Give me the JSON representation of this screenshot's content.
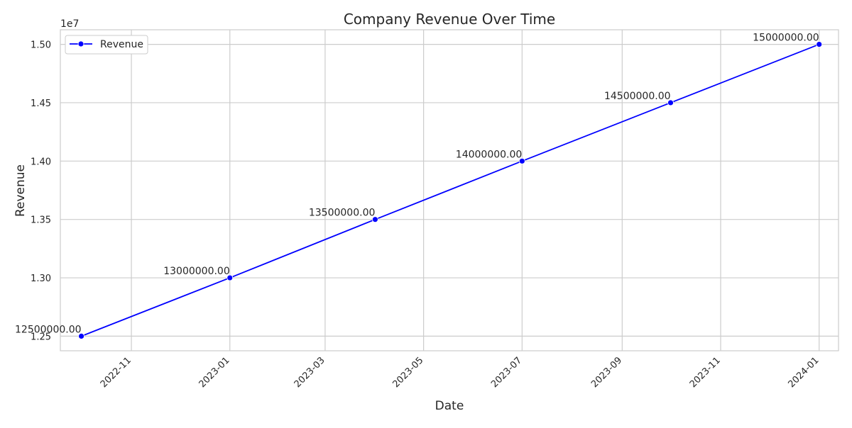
{
  "chart_data": {
    "type": "line",
    "title": "Company Revenue Over Time",
    "xlabel": "Date",
    "ylabel": "Revenue",
    "y_offset_label": "1e7",
    "grid": true,
    "legend_position": "top-left",
    "x": [
      "2022-10-01",
      "2023-01-01",
      "2023-04-01",
      "2023-07-01",
      "2023-10-01",
      "2024-01-01"
    ],
    "series": [
      {
        "name": "Revenue",
        "color": "#0000ff",
        "marker": "circle",
        "values": [
          12500000,
          13000000,
          13500000,
          14000000,
          14500000,
          15000000
        ],
        "data_labels": [
          "12500000.00",
          "13000000.00",
          "13500000.00",
          "14000000.00",
          "14500000.00",
          "15000000.00"
        ]
      }
    ],
    "x_ticks": [
      "2022-11",
      "2023-01",
      "2023-03",
      "2023-05",
      "2023-07",
      "2023-09",
      "2023-11",
      "2024-01"
    ],
    "y_ticks": [
      {
        "value": 12500000,
        "label": "1.25"
      },
      {
        "value": 13000000,
        "label": "1.30"
      },
      {
        "value": 13500000,
        "label": "1.35"
      },
      {
        "value": 14000000,
        "label": "1.40"
      },
      {
        "value": 14500000,
        "label": "1.45"
      },
      {
        "value": 15000000,
        "label": "1.50"
      }
    ],
    "xlim": [
      "2022-09-18",
      "2024-01-13"
    ],
    "ylim": [
      12375000,
      15125000
    ]
  }
}
